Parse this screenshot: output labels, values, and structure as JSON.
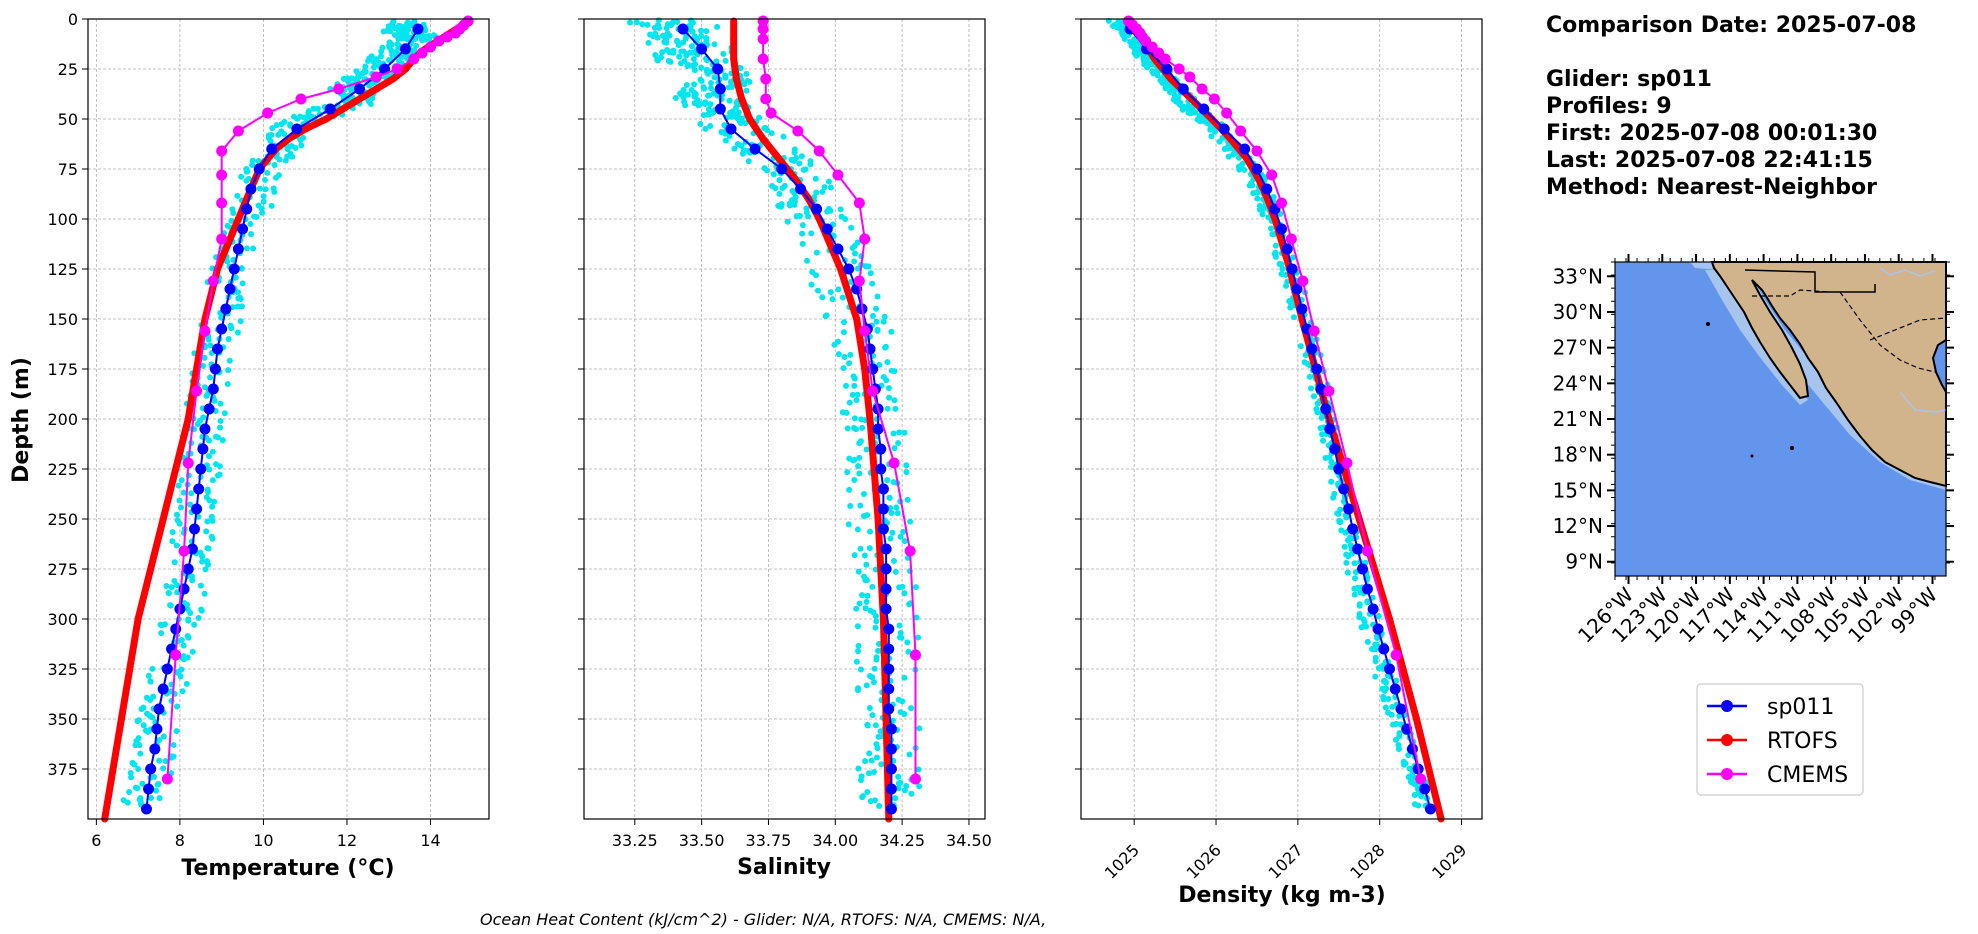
{
  "info": {
    "comparison_date": "Comparison Date: 2025-07-08",
    "glider": "Glider: sp011",
    "profiles": "Profiles: 9",
    "first": "First: 2025-07-08 00:01:30",
    "last": "Last: 2025-07-08 22:41:15",
    "method": "Method: Nearest-Neighbor"
  },
  "footer": "Ocean Heat Content (kJ/cm^2) - Glider: N/A,  RTOFS: N/A,  CMEMS: N/A,",
  "legend": [
    "sp011",
    "RTOFS",
    "CMEMS"
  ],
  "colors": {
    "sp011": "#0000ff",
    "rtofs": "#ff0000",
    "cmems": "#ff00ff",
    "raw": "#00e5ee",
    "ocean": "#6495ed",
    "shelf": "#a7c4ee",
    "land": "#d2b48c"
  },
  "map": {
    "lat_labels": [
      "33°N",
      "30°N",
      "27°N",
      "24°N",
      "21°N",
      "18°N",
      "15°N",
      "12°N",
      "9°N"
    ],
    "lon_labels": [
      "126°W",
      "123°W",
      "120°W",
      "117°W",
      "114°W",
      "111°W",
      "108°W",
      "105°W",
      "102°W",
      "99°W"
    ]
  },
  "chart_data": [
    {
      "type": "line",
      "xlabel": "Temperature (°C)",
      "ylabel": "Depth (m)",
      "xlim": [
        5.8,
        15.4
      ],
      "ylim": [
        400,
        0
      ],
      "xticks": [
        6,
        8,
        10,
        12,
        14
      ],
      "xtick_labels": [
        "6",
        "8",
        "10",
        "12",
        "14"
      ],
      "yticks": [
        0,
        25,
        50,
        75,
        100,
        125,
        150,
        175,
        200,
        225,
        250,
        275,
        300,
        325,
        350,
        375
      ],
      "ytick_labels": [
        "0",
        "25",
        "50",
        "75",
        "100",
        "125",
        "150",
        "175",
        "200",
        "225",
        "250",
        "275",
        "300",
        "325",
        "350",
        "375"
      ],
      "series": [
        {
          "name": "sp011",
          "depths": [
            5,
            15,
            25,
            35,
            45,
            55,
            65,
            75,
            85,
            95,
            105,
            115,
            125,
            135,
            145,
            155,
            165,
            175,
            185,
            195,
            205,
            215,
            225,
            235,
            245,
            255,
            265,
            275,
            285,
            295,
            305,
            315,
            325,
            335,
            345,
            355,
            365,
            375,
            385,
            395
          ],
          "values": [
            13.7,
            13.4,
            12.9,
            12.3,
            11.6,
            10.8,
            10.2,
            9.9,
            9.7,
            9.6,
            9.5,
            9.4,
            9.3,
            9.2,
            9.1,
            9.0,
            8.9,
            8.85,
            8.8,
            8.7,
            8.6,
            8.55,
            8.5,
            8.45,
            8.4,
            8.35,
            8.3,
            8.2,
            8.1,
            8.0,
            7.9,
            7.8,
            7.7,
            7.6,
            7.5,
            7.45,
            7.4,
            7.3,
            7.25,
            7.2
          ]
        },
        {
          "name": "RTOFS",
          "depths": [
            1,
            4,
            8,
            12,
            16,
            20,
            25,
            30,
            35,
            40,
            45,
            50,
            55,
            60,
            65,
            70,
            75,
            80,
            90,
            100,
            125,
            150,
            200,
            250,
            300,
            350,
            400
          ],
          "values": [
            14.9,
            14.7,
            14.4,
            14.1,
            13.8,
            13.6,
            13.4,
            13.1,
            12.7,
            12.3,
            11.9,
            11.5,
            11.0,
            10.6,
            10.3,
            10.1,
            9.9,
            9.8,
            9.6,
            9.4,
            8.9,
            8.6,
            8.2,
            7.6,
            7.0,
            6.6,
            6.2
          ]
        },
        {
          "name": "CMEMS",
          "depths": [
            1,
            3,
            5,
            7,
            9,
            11,
            14,
            17,
            20,
            25,
            29,
            35,
            40,
            47,
            56,
            66,
            78,
            92,
            110,
            131,
            156,
            186,
            222,
            266,
            318,
            380
          ],
          "values": [
            14.9,
            14.8,
            14.7,
            14.6,
            14.4,
            14.2,
            14.0,
            13.8,
            13.6,
            13.2,
            12.7,
            11.8,
            10.9,
            10.1,
            9.4,
            9.0,
            9.0,
            9.0,
            9.0,
            8.8,
            8.6,
            8.4,
            8.2,
            8.1,
            7.9,
            7.7
          ]
        },
        {
          "name": "raw",
          "depths": [
            2,
            5,
            8,
            10,
            15,
            20,
            25,
            30,
            35,
            40,
            45,
            50,
            60,
            70,
            80,
            100,
            120,
            140,
            160,
            180,
            200,
            220,
            240,
            260,
            280,
            300,
            320,
            340,
            360,
            380,
            395
          ],
          "values": [
            13.5,
            13.3,
            13.6,
            13.8,
            13.2,
            13.0,
            12.8,
            12.4,
            12.1,
            12.5,
            11.7,
            11.0,
            10.5,
            10.2,
            9.9,
            9.6,
            9.2,
            9.1,
            8.9,
            8.7,
            8.6,
            8.5,
            8.4,
            8.3,
            8.2,
            8.0,
            7.8,
            7.6,
            7.4,
            7.3,
            7.1
          ],
          "spread": 0.5
        }
      ]
    },
    {
      "type": "line",
      "xlabel": "Salinity",
      "xlim": [
        33.06,
        34.56
      ],
      "ylim": [
        400,
        0
      ],
      "xticks": [
        33.25,
        33.5,
        33.75,
        34.0,
        34.25,
        34.5
      ],
      "xtick_labels": [
        "33.25",
        "33.50",
        "33.75",
        "34.00",
        "34.25",
        "34.50"
      ],
      "series": [
        {
          "name": "sp011",
          "depths": [
            5,
            15,
            25,
            35,
            45,
            55,
            65,
            75,
            85,
            95,
            105,
            115,
            125,
            135,
            145,
            155,
            165,
            175,
            185,
            195,
            205,
            215,
            225,
            235,
            245,
            255,
            265,
            275,
            285,
            295,
            305,
            315,
            325,
            335,
            345,
            355,
            365,
            375,
            385,
            395
          ],
          "values": [
            33.43,
            33.5,
            33.56,
            33.57,
            33.57,
            33.61,
            33.7,
            33.8,
            33.87,
            33.93,
            33.97,
            34.01,
            34.05,
            34.08,
            34.1,
            34.12,
            34.13,
            34.14,
            34.15,
            34.16,
            34.16,
            34.17,
            34.17,
            34.18,
            34.18,
            34.18,
            34.19,
            34.19,
            34.19,
            34.19,
            34.2,
            34.2,
            34.2,
            34.2,
            34.2,
            34.21,
            34.21,
            34.21,
            34.21,
            34.21
          ]
        },
        {
          "name": "RTOFS",
          "depths": [
            1,
            10,
            20,
            30,
            40,
            50,
            60,
            70,
            80,
            90,
            100,
            125,
            150,
            175,
            200,
            250,
            300,
            350,
            400
          ],
          "values": [
            33.62,
            33.62,
            33.62,
            33.63,
            33.65,
            33.68,
            33.73,
            33.79,
            33.85,
            33.9,
            33.94,
            34.02,
            34.08,
            34.11,
            34.13,
            34.16,
            34.18,
            34.19,
            34.2
          ]
        },
        {
          "name": "CMEMS",
          "depths": [
            1,
            5,
            10,
            20,
            30,
            40,
            47,
            56,
            66,
            78,
            92,
            110,
            131,
            156,
            186,
            222,
            266,
            318,
            380
          ],
          "values": [
            33.73,
            33.73,
            33.73,
            33.73,
            33.74,
            33.74,
            33.76,
            33.86,
            33.94,
            34.01,
            34.09,
            34.11,
            34.09,
            34.11,
            34.14,
            34.22,
            34.28,
            34.3,
            34.3
          ]
        },
        {
          "name": "raw",
          "depths": [
            2,
            5,
            10,
            15,
            20,
            25,
            30,
            35,
            40,
            45,
            50,
            60,
            70,
            80,
            90,
            100,
            120,
            140,
            160,
            180,
            200,
            220,
            240,
            260,
            280,
            300,
            320,
            340,
            360,
            380,
            395
          ],
          "values": [
            33.35,
            33.45,
            33.4,
            33.5,
            33.42,
            33.55,
            33.6,
            33.55,
            33.5,
            33.62,
            33.58,
            33.7,
            33.78,
            33.85,
            33.9,
            33.93,
            34.0,
            34.05,
            34.1,
            34.12,
            34.14,
            34.15,
            34.16,
            34.17,
            34.18,
            34.19,
            34.19,
            34.2,
            34.2,
            34.2,
            34.21
          ],
          "spread": 0.12
        }
      ]
    },
    {
      "type": "line",
      "xlabel": "Density (kg m-3)",
      "xlim": [
        1024.35,
        1029.25
      ],
      "ylim": [
        400,
        0
      ],
      "xticks": [
        1025,
        1026,
        1027,
        1028,
        1029
      ],
      "xtick_labels": [
        "1025",
        "1026",
        "1027",
        "1028",
        "1029"
      ],
      "series": [
        {
          "name": "sp011",
          "depths": [
            5,
            15,
            25,
            35,
            45,
            55,
            65,
            75,
            85,
            95,
            105,
            115,
            125,
            135,
            145,
            155,
            165,
            175,
            185,
            195,
            205,
            215,
            225,
            235,
            245,
            255,
            265,
            275,
            285,
            295,
            305,
            315,
            325,
            335,
            345,
            355,
            365,
            375,
            385,
            395
          ],
          "values": [
            1024.95,
            1025.15,
            1025.4,
            1025.6,
            1025.85,
            1026.1,
            1026.35,
            1026.5,
            1026.62,
            1026.72,
            1026.8,
            1026.87,
            1026.93,
            1026.99,
            1027.05,
            1027.11,
            1027.17,
            1027.23,
            1027.28,
            1027.34,
            1027.39,
            1027.45,
            1027.5,
            1027.56,
            1027.62,
            1027.67,
            1027.73,
            1027.79,
            1027.85,
            1027.92,
            1027.98,
            1028.05,
            1028.12,
            1028.19,
            1028.26,
            1028.33,
            1028.4,
            1028.47,
            1028.55,
            1028.62
          ]
        },
        {
          "name": "RTOFS",
          "depths": [
            1,
            10,
            20,
            30,
            40,
            50,
            60,
            70,
            80,
            90,
            100,
            125,
            150,
            200,
            250,
            300,
            350,
            400
          ],
          "values": [
            1024.95,
            1025.1,
            1025.25,
            1025.45,
            1025.7,
            1025.95,
            1026.18,
            1026.38,
            1026.52,
            1026.63,
            1026.72,
            1026.9,
            1027.05,
            1027.38,
            1027.75,
            1028.12,
            1028.45,
            1028.75
          ]
        },
        {
          "name": "CMEMS",
          "depths": [
            1,
            3,
            5,
            7,
            9,
            11,
            14,
            17,
            20,
            25,
            29,
            35,
            40,
            47,
            56,
            66,
            78,
            92,
            110,
            131,
            156,
            186,
            222,
            266,
            318,
            380
          ],
          "values": [
            1024.93,
            1024.98,
            1025.03,
            1025.07,
            1025.1,
            1025.14,
            1025.22,
            1025.3,
            1025.38,
            1025.55,
            1025.68,
            1025.83,
            1025.98,
            1026.13,
            1026.3,
            1026.5,
            1026.68,
            1026.8,
            1026.92,
            1027.06,
            1027.2,
            1027.38,
            1027.6,
            1027.85,
            1028.2,
            1028.5
          ]
        },
        {
          "name": "raw",
          "depths": [
            2,
            5,
            10,
            15,
            20,
            25,
            30,
            35,
            40,
            45,
            50,
            60,
            70,
            80,
            90,
            100,
            120,
            140,
            160,
            180,
            200,
            220,
            240,
            260,
            280,
            300,
            320,
            340,
            360,
            380,
            395
          ],
          "values": [
            1024.8,
            1024.9,
            1025.0,
            1025.1,
            1025.2,
            1025.3,
            1025.42,
            1025.5,
            1025.6,
            1025.7,
            1025.85,
            1026.1,
            1026.3,
            1026.5,
            1026.6,
            1026.7,
            1026.85,
            1027.0,
            1027.12,
            1027.25,
            1027.35,
            1027.45,
            1027.55,
            1027.65,
            1027.75,
            1027.87,
            1028.0,
            1028.15,
            1028.3,
            1028.45,
            1028.55
          ],
          "spread": 0.12
        }
      ]
    }
  ]
}
